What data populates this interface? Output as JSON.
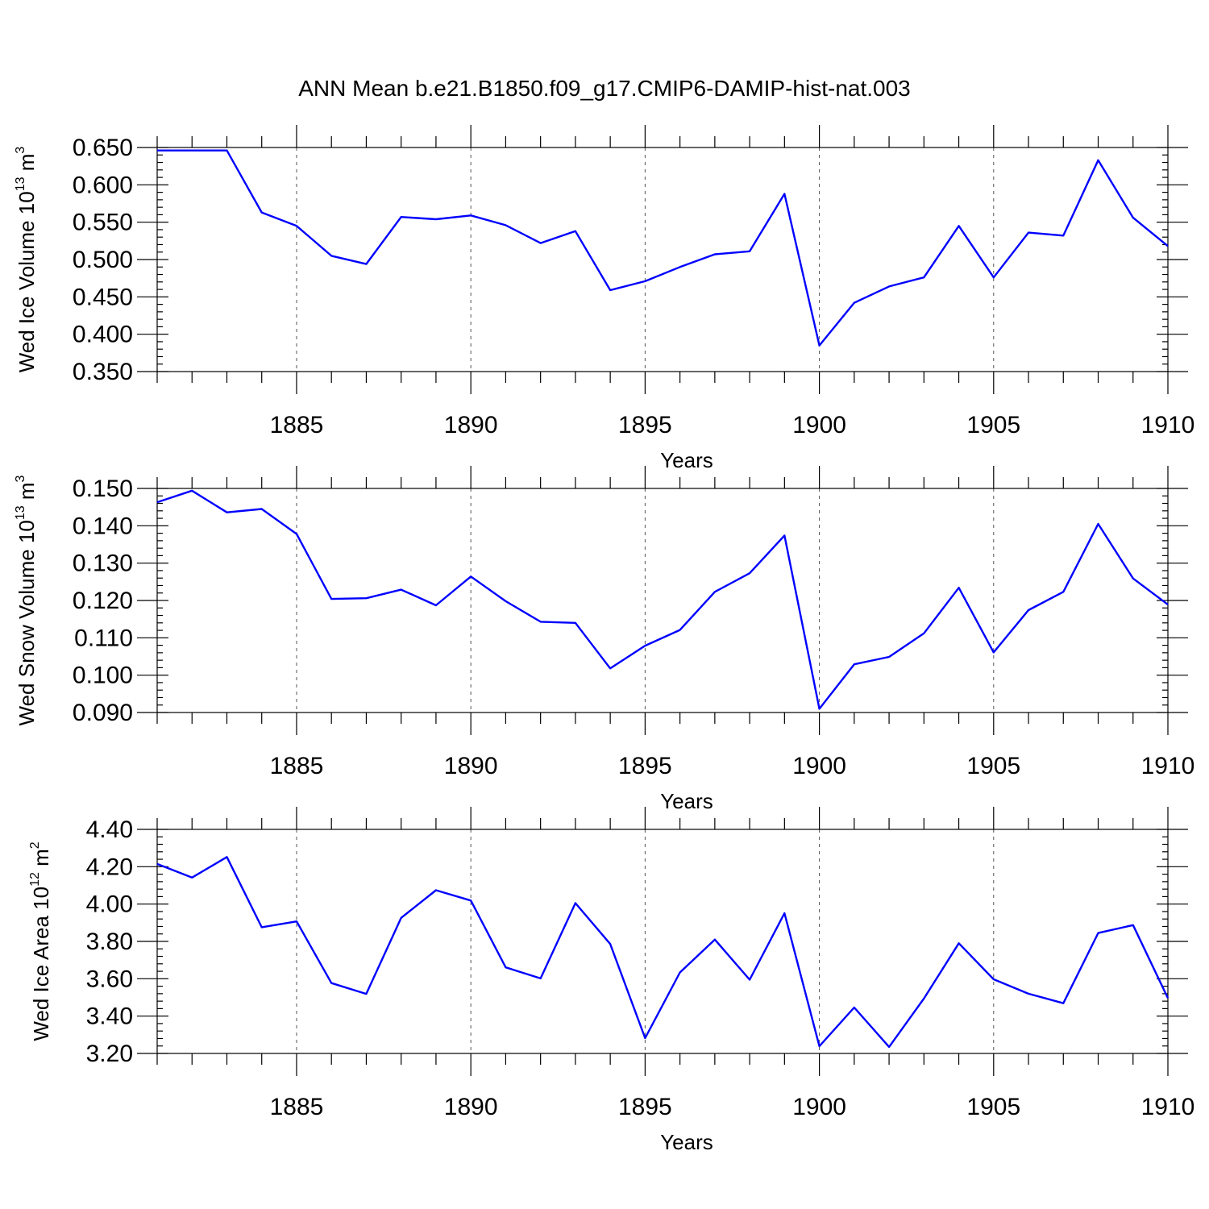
{
  "title": "ANN Mean b.e21.B1850.f09_g17.CMIP6-DAMIP-hist-nat.003",
  "colors": {
    "series": "#0000ff"
  },
  "chart_data": [
    {
      "type": "line",
      "ylabel": {
        "text": "Wed Ice Volume 10",
        "sup": "13",
        "unit": " m",
        "unit_sup": "3"
      },
      "xlabel": "Years",
      "xlim": [
        1881,
        1910
      ],
      "ylim": [
        0.35,
        0.65
      ],
      "yticks": [
        0.35,
        0.4,
        0.45,
        0.5,
        0.55,
        0.6,
        0.65
      ],
      "ytick_labels": [
        "0.350",
        "0.400",
        "0.450",
        "0.500",
        "0.550",
        "0.600",
        "0.650"
      ],
      "xticks": [
        1885,
        1890,
        1895,
        1900,
        1905,
        1910
      ],
      "xtick_labels": [
        "1885",
        "1890",
        "1895",
        "1900",
        "1905",
        "1910"
      ],
      "grid": "x-dashed",
      "x": [
        1881,
        1882,
        1883,
        1884,
        1885,
        1886,
        1887,
        1888,
        1889,
        1890,
        1891,
        1892,
        1893,
        1894,
        1895,
        1896,
        1897,
        1898,
        1899,
        1900,
        1901,
        1902,
        1903,
        1904,
        1905,
        1906,
        1907,
        1908,
        1909,
        1910
      ],
      "y": [
        0.646,
        0.646,
        0.646,
        0.563,
        0.545,
        0.505,
        0.494,
        0.557,
        0.554,
        0.559,
        0.546,
        0.522,
        0.538,
        0.459,
        0.471,
        0.49,
        0.507,
        0.511,
        0.588,
        0.385,
        0.442,
        0.464,
        0.476,
        0.545,
        0.476,
        0.536,
        0.532,
        0.633,
        0.556,
        0.518
      ]
    },
    {
      "type": "line",
      "ylabel": {
        "text": "Wed Snow Volume 10",
        "sup": "13",
        "unit": " m",
        "unit_sup": "3"
      },
      "xlabel": "Years",
      "xlim": [
        1881,
        1910
      ],
      "ylim": [
        0.09,
        0.15
      ],
      "yticks": [
        0.09,
        0.1,
        0.11,
        0.12,
        0.13,
        0.14,
        0.15
      ],
      "ytick_labels": [
        "0.090",
        "0.100",
        "0.110",
        "0.120",
        "0.130",
        "0.140",
        "0.150"
      ],
      "xticks": [
        1885,
        1890,
        1895,
        1900,
        1905,
        1910
      ],
      "xtick_labels": [
        "1885",
        "1890",
        "1895",
        "1900",
        "1905",
        "1910"
      ],
      "grid": "x-dashed",
      "x": [
        1881,
        1882,
        1883,
        1884,
        1885,
        1886,
        1887,
        1888,
        1889,
        1890,
        1891,
        1892,
        1893,
        1894,
        1895,
        1896,
        1897,
        1898,
        1899,
        1900,
        1901,
        1902,
        1903,
        1904,
        1905,
        1906,
        1907,
        1908,
        1909,
        1910
      ],
      "y": [
        0.1463,
        0.1494,
        0.1436,
        0.1445,
        0.1378,
        0.1204,
        0.1206,
        0.1229,
        0.1187,
        0.1264,
        0.1198,
        0.1143,
        0.114,
        0.1018,
        0.1079,
        0.1121,
        0.1223,
        0.1273,
        0.1374,
        0.091,
        0.1029,
        0.1049,
        0.1112,
        0.1234,
        0.1061,
        0.1174,
        0.1223,
        0.1405,
        0.1259,
        0.1189
      ]
    },
    {
      "type": "line",
      "ylabel": {
        "text": "Wed Ice Area 10",
        "sup": "12",
        "unit": " m",
        "unit_sup": "2"
      },
      "xlabel": "Years",
      "xlim": [
        1881,
        1910
      ],
      "ylim": [
        3.2,
        4.4
      ],
      "yticks": [
        3.2,
        3.4,
        3.6,
        3.8,
        4.0,
        4.2,
        4.4
      ],
      "ytick_labels": [
        "3.20",
        "3.40",
        "3.60",
        "3.80",
        "4.00",
        "4.20",
        "4.40"
      ],
      "xticks": [
        1885,
        1890,
        1895,
        1900,
        1905,
        1910
      ],
      "xtick_labels": [
        "1885",
        "1890",
        "1895",
        "1900",
        "1905",
        "1910"
      ],
      "grid": "x-dashed",
      "x": [
        1881,
        1882,
        1883,
        1884,
        1885,
        1886,
        1887,
        1888,
        1889,
        1890,
        1891,
        1892,
        1893,
        1894,
        1895,
        1896,
        1897,
        1898,
        1899,
        1900,
        1901,
        1902,
        1903,
        1904,
        1905,
        1906,
        1907,
        1908,
        1909,
        1910
      ],
      "y": [
        4.215,
        4.142,
        4.252,
        3.876,
        3.907,
        3.577,
        3.519,
        3.926,
        4.074,
        4.019,
        3.661,
        3.602,
        4.005,
        3.786,
        3.282,
        3.634,
        3.81,
        3.595,
        3.951,
        3.239,
        3.446,
        3.235,
        3.494,
        3.79,
        3.597,
        3.52,
        3.469,
        3.845,
        3.887,
        3.496
      ]
    }
  ]
}
